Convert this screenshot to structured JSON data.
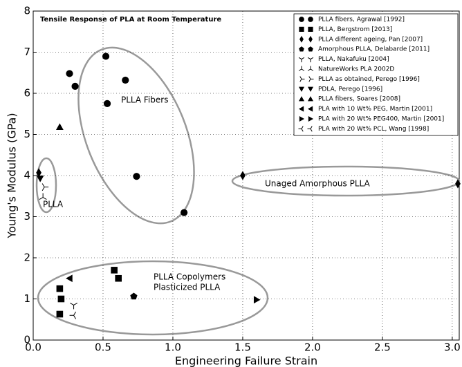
{
  "chart_data": {
    "type": "scatter",
    "title": "Tensile Response of PLA at Room Temperature",
    "x_label": "Engineering Failure Strain",
    "y_label": "Young's Modulus (GPa)",
    "xlim": [
      0,
      3.05
    ],
    "ylim": [
      0,
      8
    ],
    "xticks": [
      {
        "value": 0,
        "label": "0.0"
      },
      0.5,
      {
        "value": 1,
        "label": "1.0"
      },
      1.5,
      {
        "value": 2,
        "label": "2.0"
      },
      2.5,
      {
        "value": 3,
        "label": "3.0"
      }
    ],
    "yticks": [
      0,
      1,
      2,
      3,
      4,
      5,
      6,
      7,
      8
    ],
    "grid": true,
    "legend": "upper right",
    "annotations": [
      "PLLA Fibers",
      "PLLA",
      "Unaged Amorphous PLLA",
      "PLLA Copolymers",
      "Plasticized PLLA"
    ],
    "series": [
      {
        "name": "PLLA fibers, Agrawal [1992]",
        "color": "#000000",
        "marker": "o",
        "x": [
          0.26,
          0.3,
          0.52,
          0.53,
          0.66,
          0.74,
          1.08
        ],
        "values": [
          6.48,
          6.17,
          6.9,
          5.75,
          6.32,
          3.98,
          3.1
        ]
      },
      {
        "name": "PLLA, Bergstrom [2013]",
        "color": "#000000",
        "marker": "s",
        "x": [
          0.19,
          0.2,
          0.19,
          0.58,
          0.61
        ],
        "values": [
          1.25,
          1.0,
          0.63,
          1.7,
          1.5
        ]
      },
      {
        "name": "PLLA different ageing, Pan [2007]",
        "color": "#000000",
        "marker": "d",
        "x": [
          0.04,
          1.5,
          3.04
        ],
        "values": [
          4.07,
          4.0,
          3.8
        ]
      },
      {
        "name": "Amorphous PLLA, Delabarde [2011]",
        "color": "#000000",
        "marker": "p",
        "x": [
          0.72
        ],
        "values": [
          1.06
        ]
      },
      {
        "name": "PLLA, Nakafuku [2004]",
        "color": "#000000",
        "marker": "1",
        "x": [
          0.29
        ],
        "values": [
          0.85
        ]
      },
      {
        "name": "NatureWorks PLA 2002D",
        "color": "#000000",
        "marker": "2",
        "x": [
          0.07
        ],
        "values": [
          3.47
        ]
      },
      {
        "name": "PLLA as obtained, Perego [1996]",
        "color": "#000000",
        "marker": "4",
        "x": [
          0.08
        ],
        "values": [
          3.72
        ]
      },
      {
        "name": "PDLA, Perego [1996]",
        "color": "#000000",
        "marker": "v",
        "x": [
          0.05
        ],
        "values": [
          3.93
        ]
      },
      {
        "name": "PLLA fibers, Soares [2008]",
        "color": "#000000",
        "marker": "^",
        "x": [
          0.19
        ],
        "values": [
          5.18
        ]
      },
      {
        "name": "PLA with 10 Wt% PEG, Martin [2001]",
        "color": "#000000",
        "marker": "<",
        "x": [
          0.26
        ],
        "values": [
          1.5
        ]
      },
      {
        "name": "PLA with 20 Wt% PEG400, Martin [2001]",
        "color": "#000000",
        "marker": ">",
        "x": [
          1.6
        ],
        "values": [
          0.98
        ]
      },
      {
        "name": "PLA with 20 Wt% PCL, Wang [1998]",
        "color": "#000000",
        "marker": "3",
        "x": [
          0.29
        ],
        "values": [
          0.6
        ]
      }
    ]
  }
}
